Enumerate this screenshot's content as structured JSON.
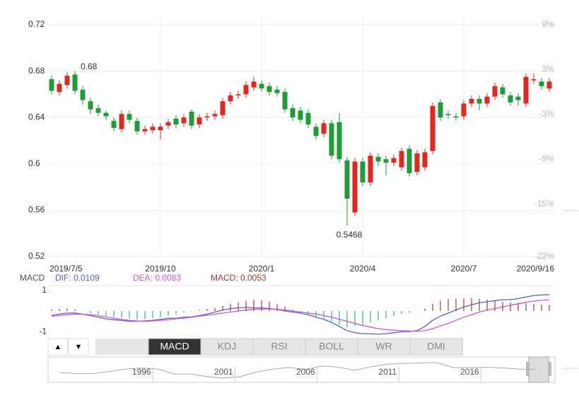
{
  "chart_data": [
    {
      "type": "candlestick",
      "categories": [
        "2019/7/5",
        null,
        null,
        null,
        null,
        null,
        null,
        null,
        null,
        null,
        null,
        null,
        null,
        null,
        "2019/10",
        null,
        null,
        null,
        null,
        null,
        null,
        null,
        null,
        null,
        null,
        null,
        null,
        "2020/1",
        null,
        null,
        null,
        null,
        null,
        null,
        null,
        null,
        null,
        null,
        null,
        null,
        "2020/4",
        null,
        null,
        null,
        null,
        null,
        null,
        null,
        null,
        null,
        null,
        null,
        null,
        "2020/7",
        null,
        null,
        null,
        null,
        null,
        null,
        null,
        null,
        null,
        null,
        "2020/9/16"
      ],
      "open": [
        0.673,
        0.662,
        0.668,
        0.677,
        0.664,
        0.654,
        0.648,
        0.644,
        0.637,
        0.63,
        0.643,
        0.637,
        0.628,
        0.629,
        0.629,
        0.633,
        0.639,
        0.635,
        0.645,
        0.634,
        0.64,
        0.641,
        0.642,
        0.654,
        0.659,
        0.66,
        0.666,
        0.669,
        0.667,
        0.664,
        0.662,
        0.648,
        0.646,
        0.644,
        0.632,
        0.626,
        0.635,
        0.636,
        0.603,
        0.558,
        0.602,
        0.584,
        0.606,
        0.604,
        0.601,
        0.597,
        0.613,
        0.593,
        0.597,
        0.611,
        0.653,
        0.643,
        0.641,
        0.641,
        0.652,
        0.656,
        0.652,
        0.658,
        0.666,
        0.659,
        0.658,
        0.652,
        0.672,
        0.671,
        0.665
      ],
      "high": [
        0.676,
        0.672,
        0.6791,
        0.68,
        0.667,
        0.657,
        0.651,
        0.646,
        0.64,
        0.646,
        0.646,
        0.64,
        0.633,
        0.635,
        0.635,
        0.639,
        0.642,
        0.643,
        0.647,
        0.643,
        0.644,
        0.646,
        0.657,
        0.662,
        0.663,
        0.671,
        0.675,
        0.672,
        0.67,
        0.667,
        0.665,
        0.651,
        0.649,
        0.647,
        0.635,
        0.638,
        0.638,
        0.644,
        0.606,
        0.605,
        0.605,
        0.61,
        0.609,
        0.607,
        0.608,
        0.614,
        0.616,
        0.612,
        0.613,
        0.653,
        0.656,
        0.646,
        0.644,
        0.655,
        0.659,
        0.659,
        0.661,
        0.67,
        0.669,
        0.662,
        0.661,
        0.678,
        0.678,
        0.674,
        0.674
      ],
      "low": [
        0.66,
        0.659,
        0.665,
        0.66,
        0.651,
        0.643,
        0.641,
        0.638,
        0.628,
        0.627,
        0.635,
        0.625,
        0.625,
        0.626,
        0.621,
        0.63,
        0.631,
        0.632,
        0.63,
        0.631,
        0.637,
        0.638,
        0.639,
        0.651,
        0.656,
        0.657,
        0.663,
        0.662,
        0.659,
        0.658,
        0.644,
        0.637,
        0.635,
        0.631,
        0.621,
        0.623,
        0.604,
        0.601,
        0.5468,
        0.555,
        0.581,
        0.581,
        0.598,
        0.59,
        0.598,
        0.594,
        0.589,
        0.59,
        0.594,
        0.608,
        0.637,
        0.639,
        0.637,
        0.638,
        0.649,
        0.646,
        0.649,
        0.655,
        0.657,
        0.65,
        0.65,
        0.649,
        0.669,
        0.664,
        0.662
      ],
      "close": [
        0.663,
        0.669,
        0.676,
        0.663,
        0.655,
        0.647,
        0.644,
        0.641,
        0.631,
        0.643,
        0.638,
        0.628,
        0.63,
        0.632,
        0.632,
        0.636,
        0.634,
        0.64,
        0.633,
        0.64,
        0.641,
        0.643,
        0.654,
        0.659,
        0.66,
        0.668,
        0.671,
        0.665,
        0.662,
        0.661,
        0.647,
        0.64,
        0.638,
        0.634,
        0.624,
        0.635,
        0.607,
        0.604,
        0.57,
        0.602,
        0.584,
        0.607,
        0.602,
        0.601,
        0.605,
        0.611,
        0.592,
        0.609,
        0.61,
        0.65,
        0.64,
        0.642,
        0.64,
        0.652,
        0.656,
        0.652,
        0.658,
        0.667,
        0.66,
        0.653,
        0.655,
        0.675,
        0.673,
        0.667,
        0.671
      ],
      "up_color": "#e5261f",
      "down_color": "#1c9e35",
      "ylim": [
        0.52,
        0.72
      ],
      "yticks": [
        0.72,
        0.68,
        0.64,
        0.6,
        0.56,
        0.52
      ],
      "y2lim": [
        -22,
        9
      ],
      "y2ticks": [
        {
          "value": 9,
          "label": "9%"
        },
        {
          "value": 3,
          "label": "3%"
        },
        {
          "value": -3,
          "label": "-3%"
        },
        {
          "value": -9,
          "label": "-9%"
        },
        {
          "value": -15,
          "label": "-15%"
        },
        {
          "value": -22,
          "label": "-22%"
        }
      ],
      "grid": true
    },
    {
      "type": "macd",
      "title": "MACD",
      "ylim": [
        -1.3,
        1.2
      ],
      "yticks": [
        1,
        -1
      ],
      "series": [
        {
          "name": "DIF: 0.0109",
          "color": "#4b63e6",
          "values": [
            -0.22,
            -0.15,
            -0.1,
            -0.1,
            -0.15,
            -0.22,
            -0.3,
            -0.38,
            -0.42,
            -0.45,
            -0.5,
            -0.5,
            -0.48,
            -0.45,
            -0.4,
            -0.35,
            -0.35,
            -0.3,
            -0.28,
            -0.22,
            -0.15,
            -0.05,
            0.05,
            0.12,
            0.15,
            0.18,
            0.15,
            0.15,
            0.12,
            0.08,
            0.0,
            -0.05,
            -0.1,
            -0.18,
            -0.3,
            -0.4,
            -0.55,
            -0.75,
            -0.95,
            -1.05,
            -1.1,
            -1.1,
            -1.12,
            -1.1,
            -1.05,
            -1.0,
            -1.0,
            -0.95,
            -0.75,
            -0.45,
            -0.25,
            -0.1,
            0.05,
            0.2,
            0.3,
            0.4,
            0.45,
            0.5,
            0.55,
            0.55,
            0.6,
            0.68,
            0.75,
            0.78,
            0.8
          ]
        },
        {
          "name": "DEA: 0.0083",
          "color": "#e24fe2",
          "values": [
            -0.25,
            -0.22,
            -0.18,
            -0.15,
            -0.15,
            -0.18,
            -0.22,
            -0.28,
            -0.35,
            -0.4,
            -0.45,
            -0.48,
            -0.5,
            -0.48,
            -0.45,
            -0.42,
            -0.38,
            -0.35,
            -0.3,
            -0.25,
            -0.2,
            -0.15,
            -0.1,
            -0.05,
            0.0,
            0.05,
            0.08,
            0.1,
            0.1,
            0.08,
            0.05,
            0.0,
            -0.05,
            -0.1,
            -0.15,
            -0.22,
            -0.3,
            -0.4,
            -0.5,
            -0.6,
            -0.7,
            -0.78,
            -0.85,
            -0.9,
            -0.93,
            -0.95,
            -0.97,
            -0.98,
            -0.95,
            -0.85,
            -0.72,
            -0.6,
            -0.45,
            -0.3,
            -0.18,
            -0.05,
            0.05,
            0.12,
            0.2,
            0.28,
            0.35,
            0.42,
            0.48,
            0.52,
            0.55
          ]
        },
        {
          "name": "MACD: 0.0053",
          "type": "bar",
          "color": "#b03a2e",
          "neg_color": "#2db38c",
          "values": [
            0.08,
            0.1,
            0.12,
            0.08,
            0.0,
            -0.1,
            -0.18,
            -0.25,
            -0.3,
            -0.32,
            -0.35,
            -0.4,
            -0.38,
            -0.35,
            -0.3,
            -0.22,
            -0.15,
            -0.08,
            -0.02,
            0.05,
            0.1,
            0.15,
            0.25,
            0.35,
            0.42,
            0.5,
            0.55,
            0.52,
            0.45,
            0.35,
            0.2,
            0.05,
            -0.1,
            -0.2,
            -0.3,
            -0.35,
            -0.5,
            -0.65,
            -0.78,
            -0.72,
            -0.68,
            -0.55,
            -0.45,
            -0.35,
            -0.25,
            -0.15,
            -0.08,
            0.0,
            0.12,
            0.35,
            0.5,
            0.58,
            0.6,
            0.62,
            0.62,
            0.6,
            0.55,
            0.5,
            0.45,
            0.42,
            0.4,
            0.38,
            0.35,
            0.32,
            0.3
          ]
        }
      ]
    },
    {
      "type": "line",
      "color": "#aaaaaa",
      "x": [
        1991,
        1992,
        1993,
        1994,
        1995,
        1996,
        1997,
        1998,
        1999,
        2000,
        2001,
        2002,
        2003,
        2004,
        2005,
        2006,
        2007,
        2008,
        2009,
        2010,
        2011,
        2012,
        2013,
        2014,
        2015,
        2016,
        2017,
        2018,
        2019,
        2020
      ],
      "values": [
        0.57,
        0.54,
        0.54,
        0.59,
        0.66,
        0.69,
        0.66,
        0.53,
        0.53,
        0.46,
        0.42,
        0.46,
        0.58,
        0.66,
        0.7,
        0.65,
        0.74,
        0.71,
        0.63,
        0.72,
        0.79,
        0.81,
        0.82,
        0.83,
        0.7,
        0.7,
        0.71,
        0.69,
        0.66,
        0.65
      ],
      "xlim": [
        1990.3,
        2021.2
      ],
      "xticks": [
        1996,
        2001,
        2006,
        2011,
        2016
      ]
    }
  ],
  "ui": {
    "arrows": [
      "▲",
      "▼"
    ],
    "tabs": [
      "MACD",
      "KDJ",
      "RSI",
      "BOLL",
      "WR",
      "DMI"
    ],
    "active_tab": 0
  }
}
